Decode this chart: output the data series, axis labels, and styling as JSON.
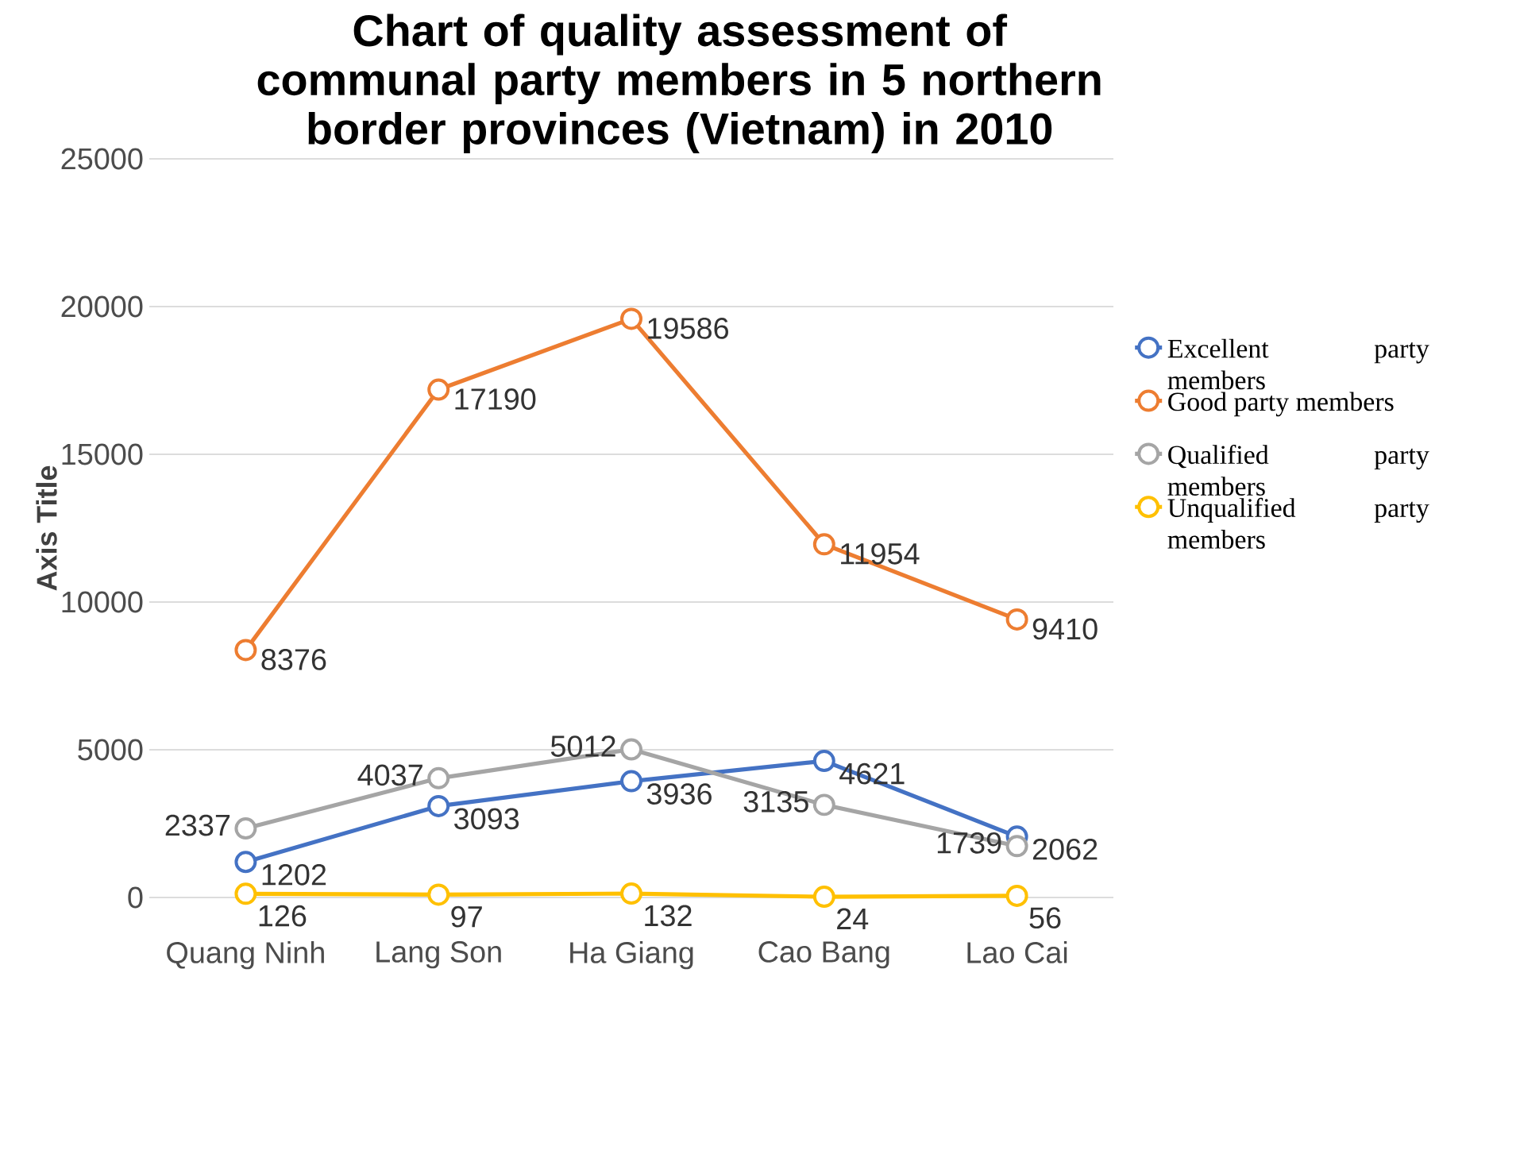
{
  "chart_data": {
    "type": "line",
    "title": "Chart of quality assessment of communal party members in 5 northern border provinces (Vietnam) in 2010",
    "ylabel": "Axis Title",
    "categories": [
      "Quang Ninh",
      "Lang Son",
      "Ha Giang",
      "Cao Bang",
      "Lao Cai"
    ],
    "series": [
      {
        "name": "Excellent party members",
        "color": "#4472c4",
        "values": [
          1202,
          3093,
          3936,
          4621,
          2062
        ]
      },
      {
        "name": "Good party members",
        "color": "#ed7d31",
        "values": [
          8376,
          17190,
          19586,
          11954,
          9410
        ]
      },
      {
        "name": "Qualified party members",
        "color": "#a5a5a5",
        "values": [
          2337,
          4037,
          5012,
          3135,
          1739
        ]
      },
      {
        "name": "Unqualified party members",
        "color": "#ffc000",
        "values": [
          126,
          97,
          132,
          24,
          56
        ]
      }
    ],
    "ylim": [
      0,
      25000
    ],
    "yticks": [
      0,
      5000,
      10000,
      15000,
      20000,
      25000
    ],
    "grid": "y",
    "legend": "right",
    "marker": "circle",
    "line_style": "solid",
    "data_labels": true
  }
}
